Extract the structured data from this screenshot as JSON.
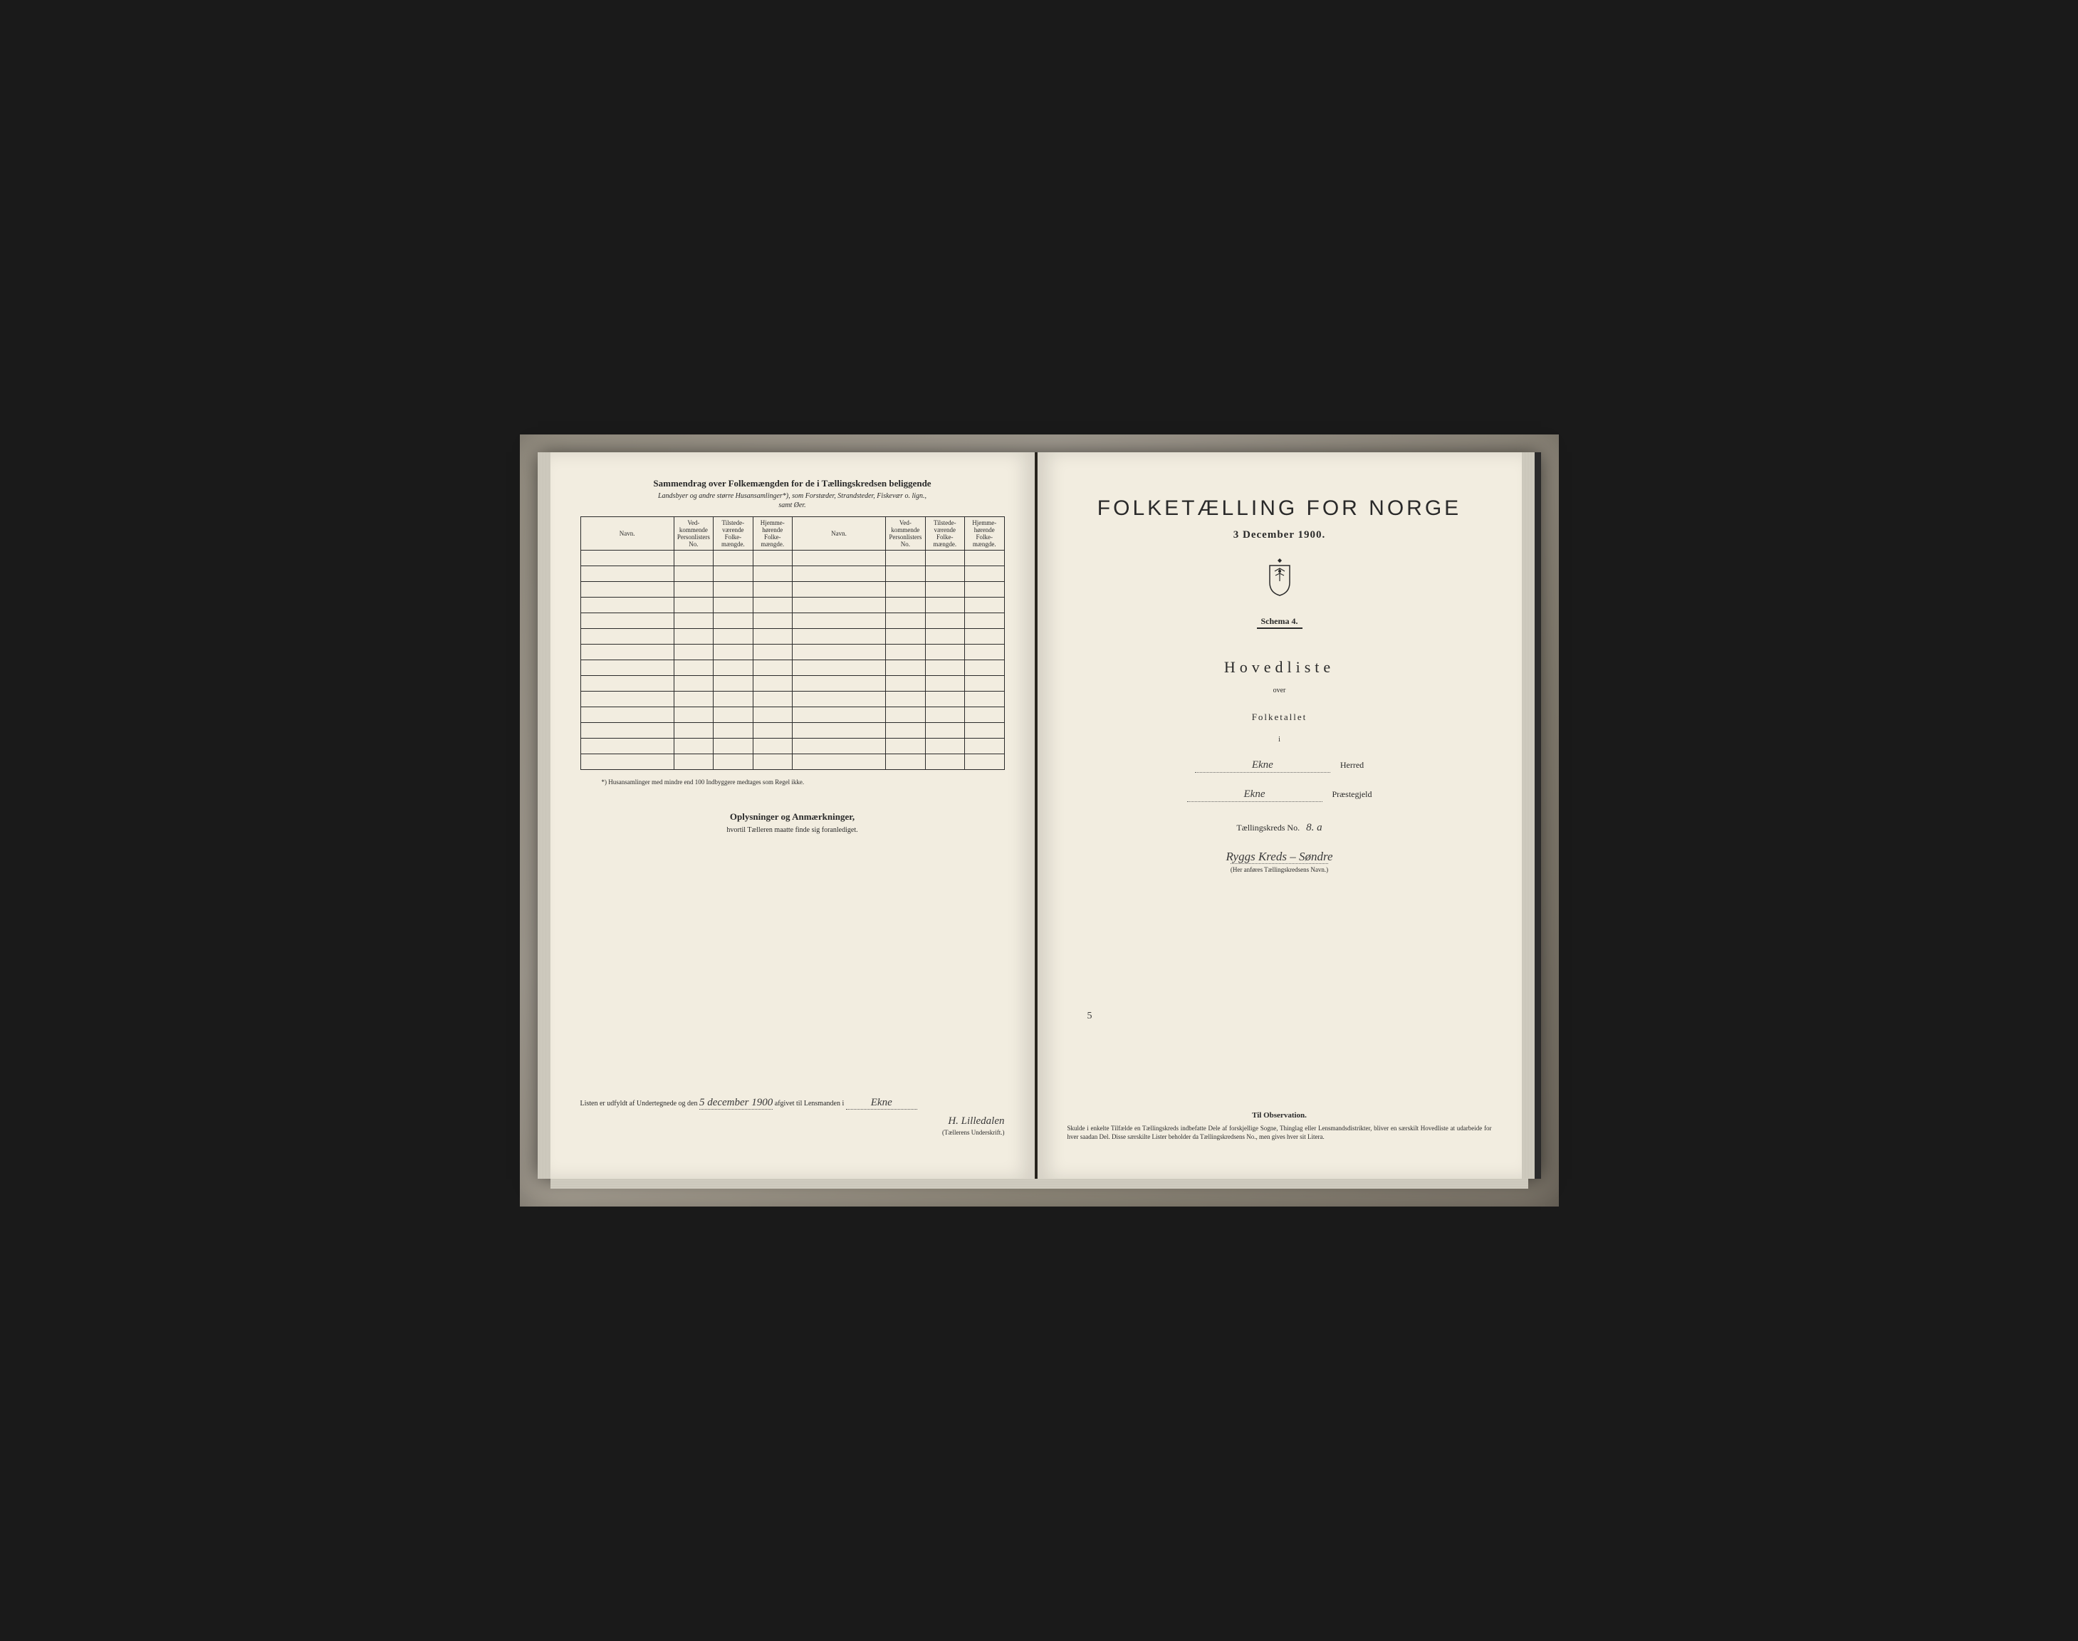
{
  "left": {
    "title": "Sammendrag over Folkemængden for de i Tællingskredsen beliggende",
    "subtitle1": "Landsbyer og andre større Husansamlinger*), som Forstæder, Strandsteder, Fiskevær o. lign.,",
    "subtitle2": "samt Øer.",
    "columns": {
      "navn": "Navn.",
      "vedkommende": "Ved-\nkommende\nPersonlisters\nNo.",
      "tilstede": "Tilstede-\nværende\nFolke-\nmængde.",
      "hjemme": "Hjemme-\nhørende\nFolke-\nmængde."
    },
    "row_count": 14,
    "footnote": "*) Husansamlinger med mindre end 100 Indbyggere medtages som Regel ikke.",
    "oplysninger_title": "Oplysninger og Anmærkninger,",
    "oplysninger_sub": "hvortil Tælleren maatte finde sig foranlediget.",
    "sig_prefix": "Listen er udfyldt af Undertegnede og den",
    "sig_date": "5 december 1900",
    "sig_mid": "afgivet til Lensmanden i",
    "sig_place": "Ekne",
    "sig_name": "H. Lilledalen",
    "sig_caption": "(Tællerens Underskrift.)"
  },
  "right": {
    "title": "FOLKETÆLLING FOR NORGE",
    "date": "3 December 1900.",
    "schema": "Schema 4.",
    "hovedliste": "Hovedliste",
    "over": "over",
    "folketallet": "Folketallet",
    "small_i": "i",
    "herred_value": "Ekne",
    "herred_label": "Herred",
    "praestegjeld_value": "Ekne",
    "praestegjeld_label": "Præstegjeld",
    "tkreds_label": "Tællingskreds No.",
    "tkreds_value": "8. a",
    "kreds_name": "Ryggs Kreds – Søndre",
    "kreds_caption": "(Her anføres Tællingskredsens Navn.)",
    "obs_title": "Til Observation.",
    "obs_text": "Skulde i enkelte Tilfælde en Tællingskreds indbefatte Dele af forskjellige Sogne, Thinglag eller Lensmandsdistrikter, bliver en særskilt Hovedliste at udarbeide for hver saadan Del. Disse særskilte Lister beholder da Tællingskredsens No., men gives hver sit Litera.",
    "stray_mark": "5"
  },
  "colors": {
    "page_bg": "#f2ede0",
    "ink": "#2a2a2a",
    "frame_bg": "#b8b0a0",
    "outer_bg": "#1a1a1a"
  }
}
